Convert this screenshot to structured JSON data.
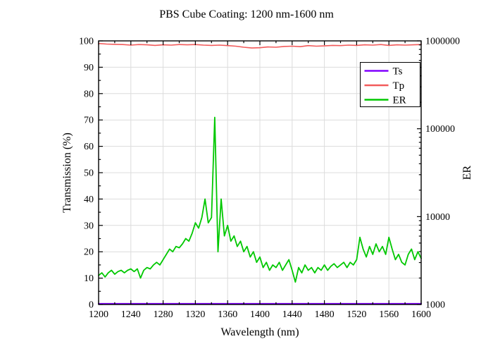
{
  "chart_data": {
    "type": "line",
    "title": "PBS Cube Coating: 1200 nm-1600 nm",
    "xlabel": "Wavelength (nm)",
    "ylabel_left": "Transmission (%)",
    "ylabel_right": "ER",
    "x_range": [
      1200,
      1600
    ],
    "x_ticks": [
      1200,
      1240,
      1280,
      1320,
      1360,
      1400,
      1440,
      1480,
      1520,
      1560,
      1600
    ],
    "x_minor_step": 20,
    "y_left_range": [
      0,
      100
    ],
    "y_left_ticks": [
      0,
      10,
      20,
      30,
      40,
      50,
      60,
      70,
      80,
      90,
      100
    ],
    "y_left_minor_step": 5,
    "y_right_scale": "log",
    "y_right_range": [
      1000,
      1000000
    ],
    "y_right_ticks": [
      1000,
      10000,
      100000,
      1000000
    ],
    "grid": true,
    "legend_position": "top-right-inside",
    "series": [
      {
        "name": "Ts",
        "color": "#8000FF",
        "axis": "left",
        "width": 2,
        "points": [
          [
            1200,
            0.3
          ],
          [
            1600,
            0.3
          ]
        ]
      },
      {
        "name": "Tp",
        "color": "#F25B5B",
        "axis": "left",
        "width": 1.6,
        "points": [
          [
            1200,
            99.0
          ],
          [
            1210,
            98.8
          ],
          [
            1220,
            98.7
          ],
          [
            1230,
            98.6
          ],
          [
            1240,
            98.4
          ],
          [
            1250,
            98.6
          ],
          [
            1260,
            98.5
          ],
          [
            1270,
            98.3
          ],
          [
            1280,
            98.5
          ],
          [
            1290,
            98.4
          ],
          [
            1300,
            98.6
          ],
          [
            1310,
            98.5
          ],
          [
            1320,
            98.6
          ],
          [
            1330,
            98.4
          ],
          [
            1340,
            98.3
          ],
          [
            1350,
            98.4
          ],
          [
            1360,
            98.2
          ],
          [
            1370,
            98.0
          ],
          [
            1380,
            97.6
          ],
          [
            1390,
            97.3
          ],
          [
            1400,
            97.4
          ],
          [
            1410,
            97.7
          ],
          [
            1420,
            97.6
          ],
          [
            1430,
            97.9
          ],
          [
            1440,
            98.0
          ],
          [
            1450,
            97.8
          ],
          [
            1460,
            98.2
          ],
          [
            1470,
            98.0
          ],
          [
            1480,
            98.1
          ],
          [
            1490,
            98.3
          ],
          [
            1500,
            98.2
          ],
          [
            1510,
            98.4
          ],
          [
            1520,
            98.3
          ],
          [
            1530,
            98.5
          ],
          [
            1540,
            98.4
          ],
          [
            1550,
            98.6
          ],
          [
            1560,
            98.3
          ],
          [
            1570,
            98.5
          ],
          [
            1580,
            98.4
          ],
          [
            1590,
            98.5
          ],
          [
            1600,
            98.6
          ]
        ]
      },
      {
        "name": "ER",
        "color": "#00C800",
        "axis": "right",
        "width": 1.8,
        "points": [
          [
            1200,
            2140
          ],
          [
            1204,
            2290
          ],
          [
            1208,
            2060
          ],
          [
            1212,
            2290
          ],
          [
            1216,
            2450
          ],
          [
            1220,
            2210
          ],
          [
            1224,
            2370
          ],
          [
            1228,
            2450
          ],
          [
            1232,
            2290
          ],
          [
            1236,
            2450
          ],
          [
            1240,
            2540
          ],
          [
            1244,
            2370
          ],
          [
            1248,
            2540
          ],
          [
            1252,
            2000
          ],
          [
            1256,
            2450
          ],
          [
            1260,
            2630
          ],
          [
            1264,
            2540
          ],
          [
            1268,
            2820
          ],
          [
            1272,
            3020
          ],
          [
            1276,
            2820
          ],
          [
            1280,
            3240
          ],
          [
            1284,
            3720
          ],
          [
            1288,
            4270
          ],
          [
            1292,
            3980
          ],
          [
            1296,
            4570
          ],
          [
            1300,
            4420
          ],
          [
            1304,
            4900
          ],
          [
            1308,
            5620
          ],
          [
            1312,
            5250
          ],
          [
            1316,
            6460
          ],
          [
            1320,
            8510
          ],
          [
            1324,
            7410
          ],
          [
            1328,
            9770
          ],
          [
            1332,
            15850
          ],
          [
            1336,
            8510
          ],
          [
            1340,
            9770
          ],
          [
            1344,
            134900
          ],
          [
            1348,
            3980
          ],
          [
            1352,
            15850
          ],
          [
            1356,
            6030
          ],
          [
            1360,
            7940
          ],
          [
            1364,
            5250
          ],
          [
            1368,
            6030
          ],
          [
            1372,
            4570
          ],
          [
            1376,
            5250
          ],
          [
            1380,
            3980
          ],
          [
            1384,
            4570
          ],
          [
            1388,
            3470
          ],
          [
            1392,
            3980
          ],
          [
            1396,
            3020
          ],
          [
            1400,
            3470
          ],
          [
            1404,
            2630
          ],
          [
            1408,
            3020
          ],
          [
            1412,
            2450
          ],
          [
            1416,
            2820
          ],
          [
            1420,
            2630
          ],
          [
            1424,
            3020
          ],
          [
            1428,
            2450
          ],
          [
            1432,
            2820
          ],
          [
            1436,
            3240
          ],
          [
            1440,
            2450
          ],
          [
            1444,
            1800
          ],
          [
            1448,
            2630
          ],
          [
            1452,
            2290
          ],
          [
            1456,
            2820
          ],
          [
            1460,
            2450
          ],
          [
            1464,
            2630
          ],
          [
            1468,
            2290
          ],
          [
            1472,
            2630
          ],
          [
            1476,
            2450
          ],
          [
            1480,
            2820
          ],
          [
            1484,
            2450
          ],
          [
            1488,
            2720
          ],
          [
            1492,
            2910
          ],
          [
            1496,
            2630
          ],
          [
            1500,
            2820
          ],
          [
            1504,
            3020
          ],
          [
            1508,
            2630
          ],
          [
            1512,
            3020
          ],
          [
            1516,
            2820
          ],
          [
            1520,
            3240
          ],
          [
            1524,
            5810
          ],
          [
            1528,
            4270
          ],
          [
            1532,
            3470
          ],
          [
            1536,
            4570
          ],
          [
            1540,
            3720
          ],
          [
            1544,
            4900
          ],
          [
            1548,
            3980
          ],
          [
            1552,
            4570
          ],
          [
            1556,
            3720
          ],
          [
            1560,
            5810
          ],
          [
            1564,
            4270
          ],
          [
            1568,
            3240
          ],
          [
            1572,
            3720
          ],
          [
            1576,
            3020
          ],
          [
            1580,
            2820
          ],
          [
            1584,
            3720
          ],
          [
            1588,
            4270
          ],
          [
            1592,
            3240
          ],
          [
            1596,
            3980
          ],
          [
            1600,
            3350
          ]
        ]
      }
    ],
    "colors": {
      "grid": "#dcdcdc",
      "axis": "#000000",
      "background": "#ffffff"
    }
  }
}
